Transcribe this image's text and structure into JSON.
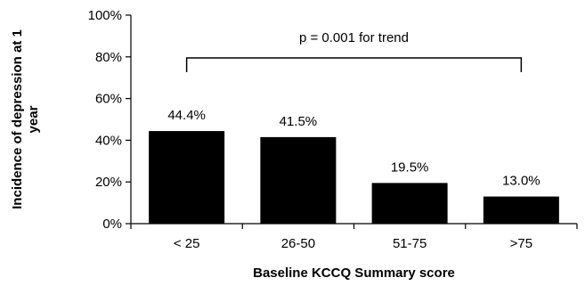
{
  "chart_data": {
    "type": "bar",
    "categories": [
      "< 25",
      "26-50",
      "51-75",
      ">75"
    ],
    "values": [
      44.4,
      41.5,
      19.5,
      13.0
    ],
    "data_labels": [
      "44.4%",
      "41.5%",
      "19.5%",
      "13.0%"
    ],
    "xlabel": "Baseline KCCQ Summary score",
    "ylabel_lines": [
      "Incidence of depression at 1",
      "year"
    ],
    "ylim": [
      0,
      100
    ],
    "yticks": [
      0,
      20,
      40,
      60,
      80,
      100
    ],
    "ytick_labels": [
      "0%",
      "20%",
      "40%",
      "60%",
      "80%",
      "100%"
    ],
    "annotation": "p = 0.001 for trend",
    "bar_color": "#000000",
    "grid": false,
    "legend": "none"
  }
}
